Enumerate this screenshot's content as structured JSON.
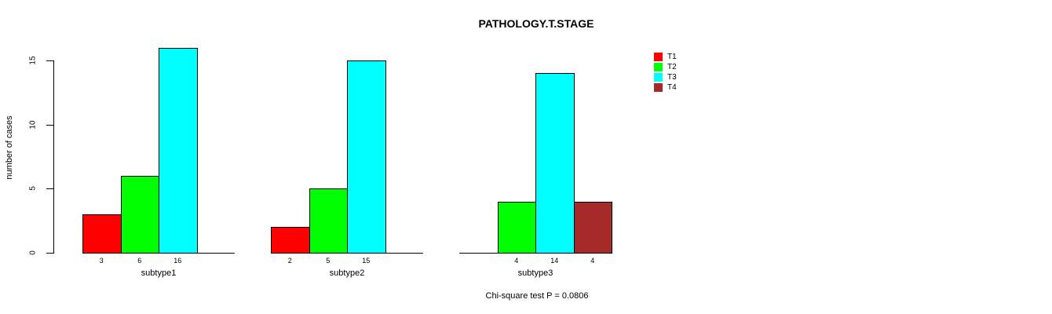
{
  "chart_data": {
    "type": "bar",
    "title": "PATHOLOGY.T.STAGE",
    "ylabel": "number of cases",
    "xlabel": "",
    "note": "Chi-square test P = 0.0806",
    "ylim": [
      0,
      16
    ],
    "yticks": [
      0,
      5,
      10,
      15
    ],
    "grid": false,
    "legend_position": "right",
    "value_labels": "counts shown under each nonzero bar",
    "categories": [
      "subtype1",
      "subtype2",
      "subtype3"
    ],
    "series": [
      {
        "name": "T1",
        "color": "#FF0000",
        "values": [
          3,
          2,
          0
        ]
      },
      {
        "name": "T2",
        "color": "#00FF00",
        "values": [
          6,
          5,
          4
        ]
      },
      {
        "name": "T3",
        "color": "#00FFFF",
        "values": [
          16,
          15,
          14
        ]
      },
      {
        "name": "T4",
        "color": "#A52A2A",
        "values": [
          0,
          0,
          4
        ]
      }
    ]
  }
}
